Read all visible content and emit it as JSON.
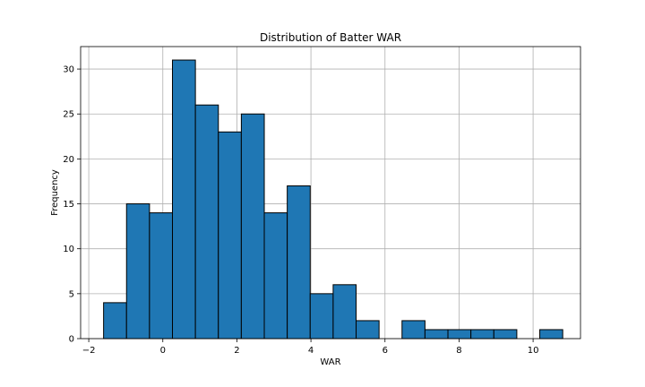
{
  "chart_data": {
    "type": "bar",
    "title": "Distribution of Batter WAR",
    "xlabel": "WAR",
    "ylabel": "Frequency",
    "bar_color": "#1f77b4",
    "edge_color": "#000000",
    "grid": true,
    "xlim": [
      -2.22,
      11.28
    ],
    "ylim": [
      0,
      32.5
    ],
    "xticks": [
      -2,
      0,
      2,
      4,
      6,
      8,
      10
    ],
    "xtick_labels": [
      "−2",
      "0",
      "2",
      "4",
      "6",
      "8",
      "10"
    ],
    "yticks": [
      0,
      5,
      10,
      15,
      20,
      25,
      30
    ],
    "ytick_labels": [
      "0",
      "5",
      "10",
      "15",
      "20",
      "25",
      "30"
    ],
    "bin_start": -1.6,
    "bin_width": 0.62,
    "values": [
      4,
      15,
      14,
      31,
      26,
      23,
      25,
      14,
      17,
      5,
      6,
      2,
      0,
      2,
      1,
      1,
      1,
      1,
      0,
      1
    ]
  }
}
